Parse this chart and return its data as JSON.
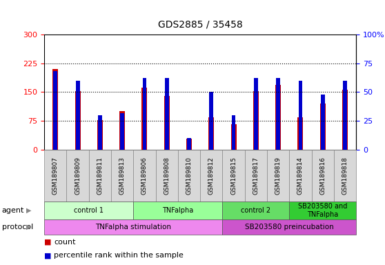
{
  "title": "GDS2885 / 35458",
  "samples": [
    "GSM189807",
    "GSM189809",
    "GSM189811",
    "GSM189813",
    "GSM189806",
    "GSM189808",
    "GSM189810",
    "GSM189812",
    "GSM189815",
    "GSM189817",
    "GSM189819",
    "GSM189814",
    "GSM189816",
    "GSM189818"
  ],
  "count_values": [
    210,
    152,
    78,
    100,
    162,
    140,
    28,
    85,
    66,
    152,
    168,
    85,
    120,
    157
  ],
  "percentile_values": [
    68,
    60,
    30,
    32,
    62,
    62,
    10,
    50,
    30,
    62,
    62,
    60,
    48,
    60
  ],
  "count_color": "#cc0000",
  "percentile_color": "#0000cc",
  "ylim_left": [
    0,
    300
  ],
  "ylim_right": [
    0,
    100
  ],
  "yticks_left": [
    0,
    75,
    150,
    225,
    300
  ],
  "yticks_right": [
    0,
    25,
    50,
    75,
    100
  ],
  "hlines": [
    75,
    150,
    225
  ],
  "agent_groups": [
    {
      "label": "control 1",
      "start": 0,
      "end": 4,
      "color": "#ccffcc"
    },
    {
      "label": "TNFalpha",
      "start": 4,
      "end": 8,
      "color": "#99ff99"
    },
    {
      "label": "control 2",
      "start": 8,
      "end": 11,
      "color": "#66dd66"
    },
    {
      "label": "SB203580 and\nTNFalpha",
      "start": 11,
      "end": 14,
      "color": "#33cc33"
    }
  ],
  "protocol_groups": [
    {
      "label": "TNFalpha stimulation",
      "start": 0,
      "end": 8,
      "color": "#ee88ee"
    },
    {
      "label": "SB203580 preincubation",
      "start": 8,
      "end": 14,
      "color": "#cc55cc"
    }
  ],
  "bar_bg_color": "#d8d8d8",
  "chart_bg": "#ffffff"
}
